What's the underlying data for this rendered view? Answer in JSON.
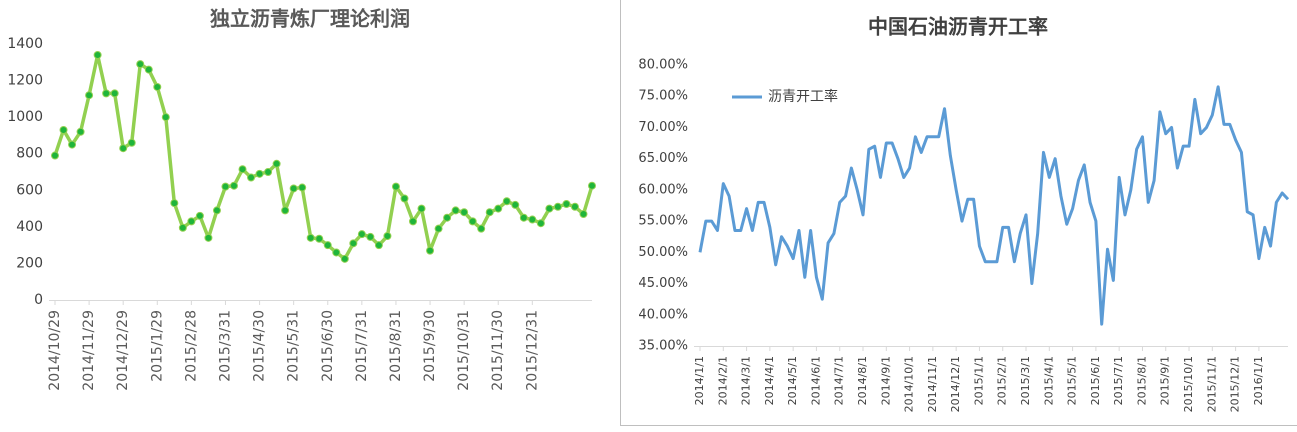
{
  "chart_data": [
    {
      "type": "line",
      "title": "独立沥青炼厂理论利润",
      "categories": [
        "2014/10/29",
        null,
        null,
        null,
        "2014/11/29",
        null,
        null,
        null,
        "2014/12/29",
        null,
        null,
        null,
        "2015/1/29",
        null,
        null,
        null,
        "2015/2/28",
        null,
        null,
        null,
        "2015/3/31",
        null,
        null,
        null,
        "2015/4/30",
        null,
        null,
        null,
        "2015/5/31",
        null,
        null,
        null,
        "2015/6/30",
        null,
        null,
        null,
        "2015/7/31",
        null,
        null,
        null,
        "2015/8/31",
        null,
        null,
        null,
        "2015/9/30",
        null,
        null,
        null,
        "2015/10/31",
        null,
        null,
        null,
        "2015/11/30",
        null,
        null,
        null,
        "2015/12/31",
        null,
        null,
        null,
        null,
        null,
        null,
        null
      ],
      "series": [
        {
          "color": "#92d050",
          "marker_color": "#1fb53a",
          "values": [
            790,
            930,
            850,
            920,
            1120,
            1340,
            1130,
            1130,
            830,
            860,
            1290,
            1260,
            1165,
            1000,
            530,
            395,
            430,
            460,
            340,
            490,
            620,
            625,
            715,
            670,
            690,
            700,
            745,
            490,
            610,
            615,
            340,
            335,
            300,
            260,
            225,
            310,
            360,
            345,
            300,
            350,
            620,
            555,
            430,
            500,
            270,
            390,
            450,
            490,
            480,
            430,
            390,
            480,
            500,
            540,
            520,
            450,
            440,
            420,
            500,
            510,
            525,
            510,
            470,
            625
          ]
        }
      ],
      "ylim": [
        0,
        1400
      ],
      "yticks": [
        0,
        200,
        400,
        600,
        800,
        1000,
        1200,
        1400
      ],
      "grid": false,
      "markers": true
    },
    {
      "type": "line",
      "title": "中国石油沥青开工率",
      "categories": [
        "2014/1/1",
        null,
        null,
        null,
        "2014/2/1",
        null,
        null,
        null,
        "2014/3/1",
        null,
        null,
        null,
        "2014/4/1",
        null,
        null,
        null,
        "2014/5/1",
        null,
        null,
        null,
        "2014/6/1",
        null,
        null,
        null,
        "2014/7/1",
        null,
        null,
        null,
        "2014/8/1",
        null,
        null,
        null,
        "2014/9/1",
        null,
        null,
        null,
        "2014/10/1",
        null,
        null,
        null,
        "2014/11/1",
        null,
        null,
        null,
        "2014/12/1",
        null,
        null,
        null,
        "2015/1/1",
        null,
        null,
        null,
        "2015/2/1",
        null,
        null,
        null,
        "2015/3/1",
        null,
        null,
        null,
        "2015/4/1",
        null,
        null,
        null,
        "2015/5/1",
        null,
        null,
        null,
        "2015/6/1",
        null,
        null,
        null,
        "2015/7/1",
        null,
        null,
        null,
        "2015/8/1",
        null,
        null,
        null,
        "2015/9/1",
        null,
        null,
        null,
        "2015/10/1",
        null,
        null,
        null,
        "2015/11/1",
        null,
        null,
        null,
        "2015/12/1",
        null,
        null,
        null,
        "2016/1/1",
        null,
        null,
        null,
        null,
        null
      ],
      "series": [
        {
          "name": "沥青开工率",
          "color": "#5b9bd5",
          "values": [
            50,
            55,
            55,
            53.5,
            61,
            59,
            53.5,
            53.5,
            57,
            53.5,
            58,
            58,
            54,
            48,
            52.5,
            51,
            49,
            53.5,
            46,
            53.5,
            46,
            42.5,
            51.5,
            53,
            58,
            59,
            63.5,
            60,
            56,
            66.5,
            67,
            62,
            67.5,
            67.5,
            65,
            62,
            63.5,
            68.5,
            66,
            68.5,
            68.5,
            68.5,
            73,
            65.5,
            60,
            55,
            58.5,
            58.5,
            51,
            48.5,
            48.5,
            48.5,
            54,
            54,
            48.5,
            53,
            56,
            45,
            53,
            66,
            62,
            65,
            59,
            54.5,
            57,
            61.5,
            64,
            58,
            55,
            38.5,
            50.5,
            45.5,
            62,
            56,
            60,
            66.5,
            68.5,
            58,
            61.5,
            72.5,
            69,
            70,
            63.5,
            67,
            67,
            74.5,
            69,
            70,
            72,
            76.5,
            70.5,
            70.5,
            68,
            66,
            56.5,
            56,
            49,
            54,
            51,
            58,
            59.5,
            58.5
          ]
        }
      ],
      "ylim": [
        35,
        80
      ],
      "yticks": [
        {
          "value": 35,
          "label": "35.00%"
        },
        {
          "value": 40,
          "label": "40.00%"
        },
        {
          "value": 45,
          "label": "45.00%"
        },
        {
          "value": 50,
          "label": "50.00%"
        },
        {
          "value": 55,
          "label": "55.00%"
        },
        {
          "value": 60,
          "label": "60.00%"
        },
        {
          "value": 65,
          "label": "65.00%"
        },
        {
          "value": 70,
          "label": "70.00%"
        },
        {
          "value": 75,
          "label": "75.00%"
        },
        {
          "value": 80,
          "label": "80.00%"
        }
      ],
      "grid": false,
      "markers": false,
      "legend": "upper left"
    }
  ]
}
